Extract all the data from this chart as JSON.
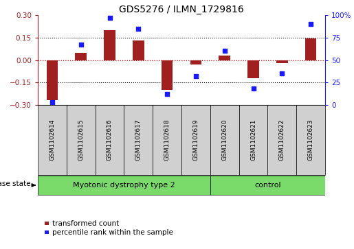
{
  "title": "GDS5276 / ILMN_1729816",
  "samples": [
    "GSM1102614",
    "GSM1102615",
    "GSM1102616",
    "GSM1102617",
    "GSM1102618",
    "GSM1102619",
    "GSM1102620",
    "GSM1102621",
    "GSM1102622",
    "GSM1102623"
  ],
  "bar_values": [
    -0.27,
    0.05,
    0.2,
    0.13,
    -0.2,
    -0.03,
    0.03,
    -0.12,
    -0.02,
    0.145
  ],
  "percentile_values": [
    3,
    67,
    97,
    85,
    12,
    32,
    60,
    18,
    35,
    90
  ],
  "bar_color": "#a02020",
  "dot_color": "#1a1aff",
  "ylim_left": [
    -0.3,
    0.3
  ],
  "ylim_right": [
    0,
    100
  ],
  "yticks_left": [
    -0.3,
    -0.15,
    0.0,
    0.15,
    0.3
  ],
  "yticks_right": [
    0,
    25,
    50,
    75,
    100
  ],
  "ytick_labels_right": [
    "0",
    "25",
    "50",
    "75",
    "100%"
  ],
  "group1_label": "Myotonic dystrophy type 2",
  "group2_label": "control",
  "group1_indices": [
    0,
    1,
    2,
    3,
    4,
    5
  ],
  "group2_indices": [
    6,
    7,
    8,
    9
  ],
  "disease_label": "disease state",
  "legend_bar_label": "transformed count",
  "legend_dot_label": "percentile rank within the sample",
  "group1_color": "#7adb6a",
  "group2_color": "#7adb6a",
  "sample_box_color": "#d0d0d0",
  "title_fontsize": 10,
  "tick_fontsize": 7.5,
  "sample_fontsize": 6.5,
  "group_fontsize": 8,
  "legend_fontsize": 7.5,
  "disease_fontsize": 7.5
}
